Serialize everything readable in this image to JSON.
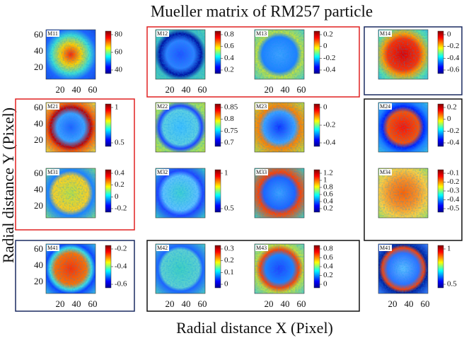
{
  "title": "Mueller matrix of RM257 particle",
  "x_label": "Radial distance X (Pixel)",
  "y_label": "Radial distance Y (Pixel)",
  "panels": [
    {
      "label": "M11",
      "colorbar_ticks": [
        80,
        60,
        40
      ],
      "yticks": [
        60,
        40,
        20
      ],
      "xticks": [
        20,
        40,
        60
      ]
    },
    {
      "label": "M12",
      "colorbar_ticks": [
        0.8,
        0.6,
        0.4,
        0.2
      ],
      "xticks": [
        20,
        40,
        60
      ]
    },
    {
      "label": "M13",
      "colorbar_ticks": [
        0.2,
        0,
        -0.2,
        -0.4
      ],
      "xticks": [
        20,
        40,
        60
      ]
    },
    {
      "label": "M14",
      "colorbar_ticks": [
        0,
        -0.2,
        -0.4,
        -0.6
      ]
    },
    {
      "label": "M21",
      "colorbar_ticks": [
        1,
        0.5
      ],
      "yticks": [
        60,
        40,
        20
      ]
    },
    {
      "label": "M22",
      "colorbar_ticks": [
        0.85,
        0.8,
        0.75,
        0.7
      ]
    },
    {
      "label": "M23",
      "colorbar_ticks": [
        0,
        -0.2,
        -0.4
      ]
    },
    {
      "label": "M24",
      "colorbar_ticks": [
        0.2,
        0,
        -0.2,
        -0.4
      ]
    },
    {
      "label": "M31",
      "colorbar_ticks": [
        0.4,
        0.2,
        0,
        -0.2
      ],
      "yticks": [
        60,
        40,
        20
      ]
    },
    {
      "label": "M32",
      "colorbar_ticks": [
        1,
        0.5
      ]
    },
    {
      "label": "M33",
      "colorbar_ticks": [
        1.2,
        1,
        0.8,
        0.6,
        0.4,
        0.2
      ]
    },
    {
      "label": "M34",
      "colorbar_ticks": [
        -0.1,
        -0.2,
        -0.3,
        -0.4,
        -0.5
      ]
    },
    {
      "label": "M41",
      "colorbar_ticks": [
        -0.2,
        -0.4,
        -0.6
      ],
      "yticks": [
        60,
        40,
        20
      ],
      "xticks": [
        20,
        40,
        60
      ]
    },
    {
      "label": "M42",
      "colorbar_ticks": [
        0.3,
        0.2,
        0.1,
        0
      ],
      "xticks": [
        20,
        40,
        60
      ]
    },
    {
      "label": "M43",
      "colorbar_ticks": [
        0.8,
        0.6,
        0.4,
        0.2,
        0
      ],
      "xticks": [
        20,
        40,
        60
      ]
    },
    {
      "label": "M41",
      "colorbar_ticks": [
        1,
        0.5
      ],
      "xticks": [
        20,
        40,
        60
      ]
    }
  ]
}
